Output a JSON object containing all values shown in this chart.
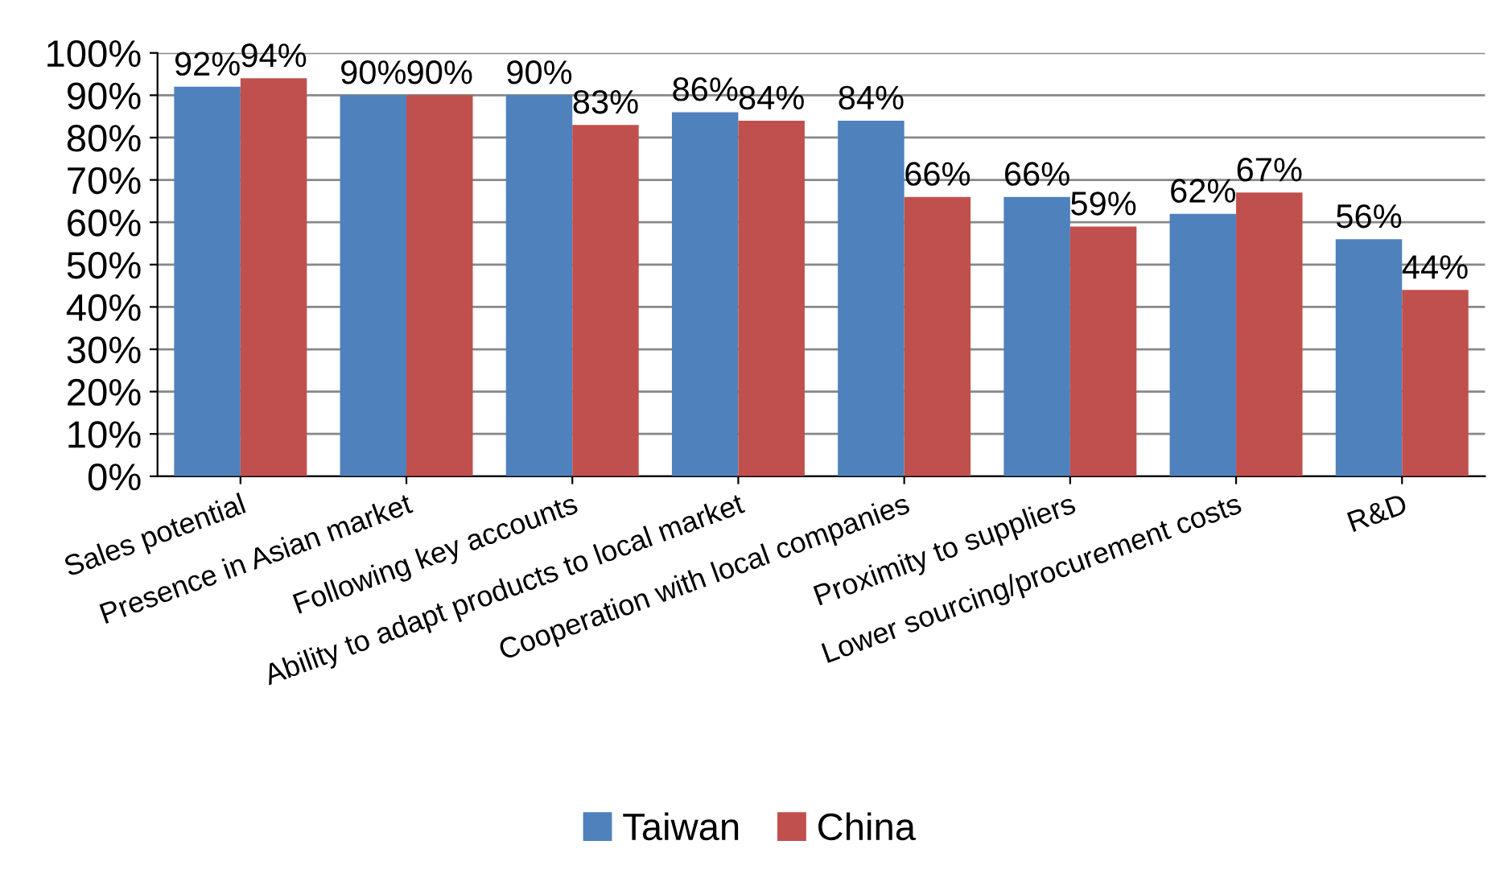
{
  "chart_data": {
    "type": "bar",
    "categories": [
      "Sales potential",
      "Presence in Asian market",
      "Following key accounts",
      "Ability to adapt products to local market",
      "Cooperation with local companies",
      "Proximity to suppliers",
      "Lower sourcing/procurement costs",
      "R&D"
    ],
    "series": [
      {
        "name": "Taiwan",
        "color": "#4f81bd",
        "values": [
          92,
          90,
          90,
          86,
          84,
          66,
          62,
          56
        ],
        "value_labels": [
          "92%",
          "90%",
          "90%",
          "86%",
          "84%",
          "66%",
          "62%",
          "56%"
        ]
      },
      {
        "name": "China",
        "color": "#c0504d",
        "values": [
          94,
          90,
          83,
          84,
          66,
          59,
          67,
          44
        ],
        "value_labels": [
          "94%",
          "90%",
          "83%",
          "84%",
          "66%",
          "59%",
          "67%",
          "44%"
        ]
      }
    ],
    "ylim": [
      0,
      100
    ],
    "yticks": [
      {
        "value": 0,
        "label": "0%"
      },
      {
        "value": 10,
        "label": "10%"
      },
      {
        "value": 20,
        "label": "20%"
      },
      {
        "value": 30,
        "label": "30%"
      },
      {
        "value": 40,
        "label": "40%"
      },
      {
        "value": 50,
        "label": "50%"
      },
      {
        "value": 60,
        "label": "60%"
      },
      {
        "value": 70,
        "label": "70%"
      },
      {
        "value": 80,
        "label": "80%"
      },
      {
        "value": 90,
        "label": "90%"
      },
      {
        "value": 100,
        "label": "100%"
      }
    ],
    "grid": "y",
    "legend": "bottom"
  }
}
